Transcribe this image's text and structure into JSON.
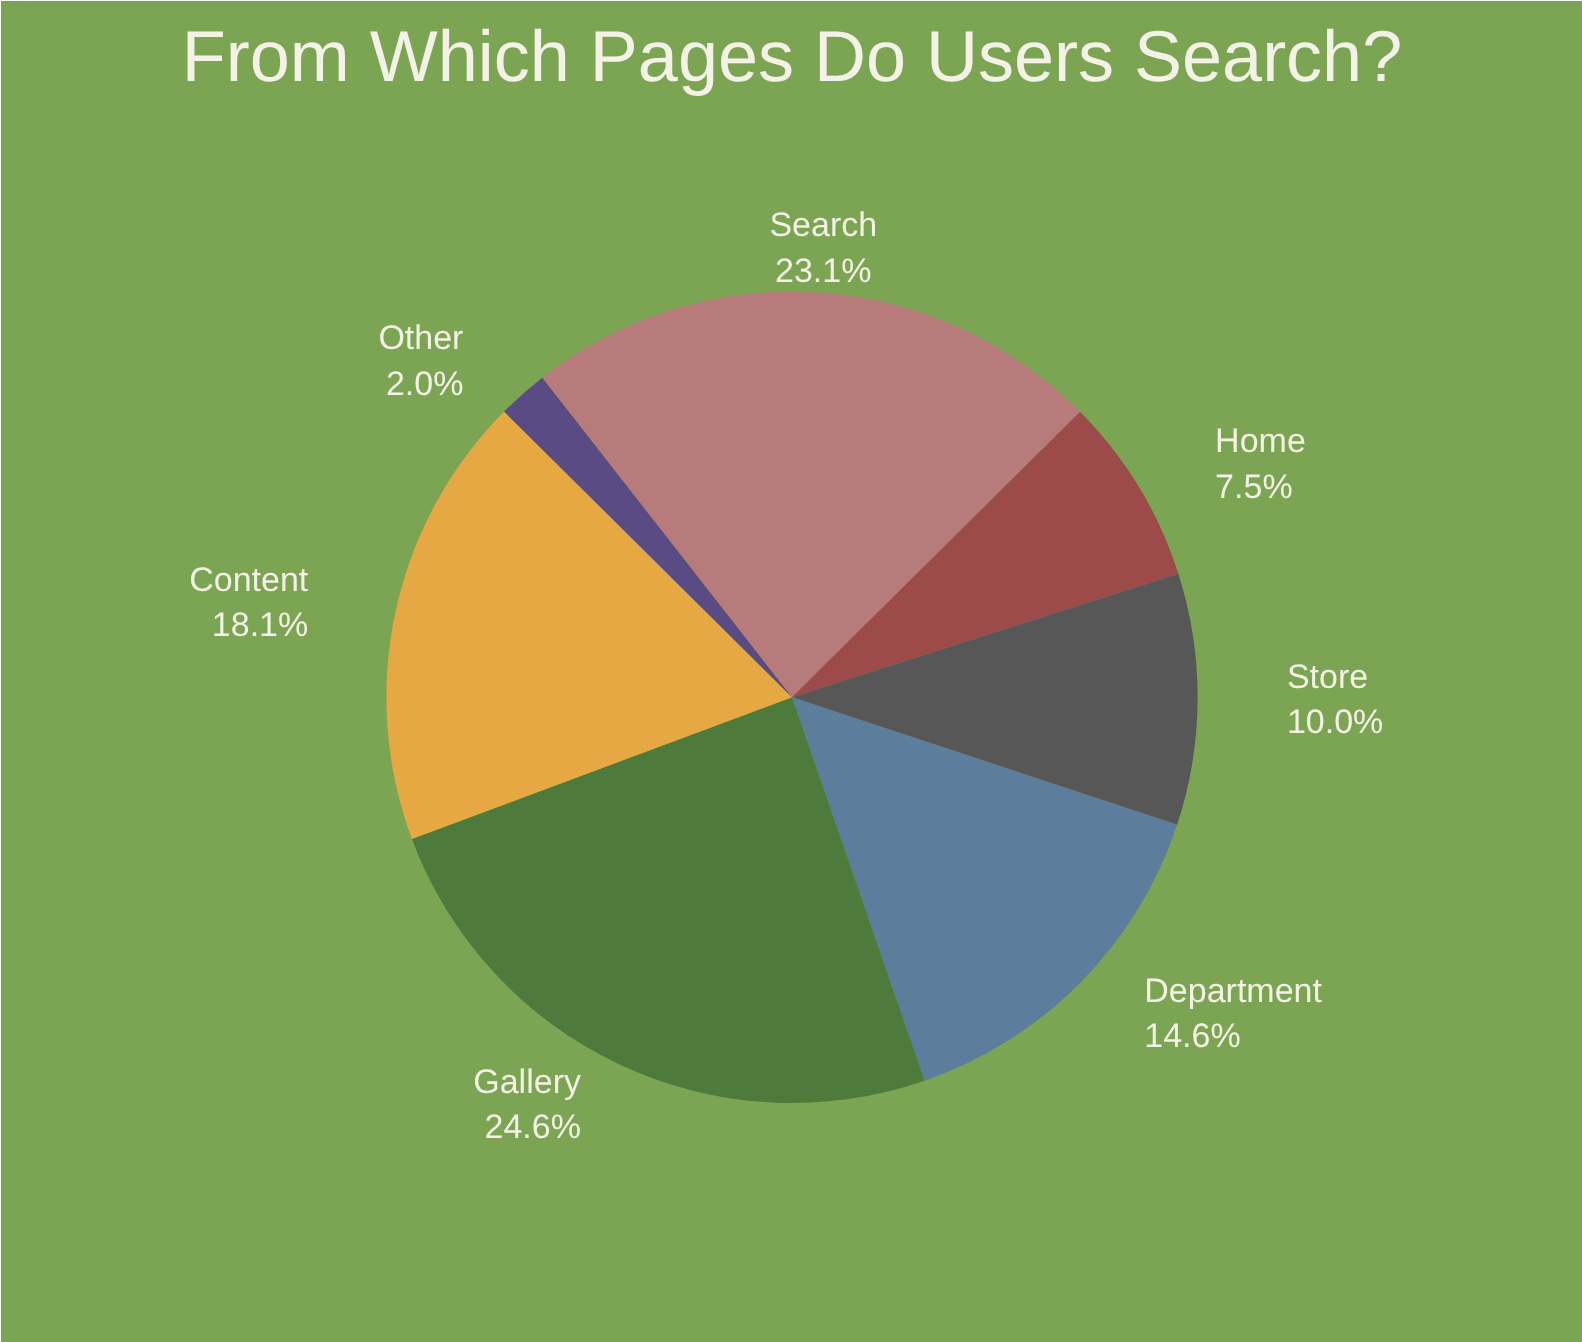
{
  "chart_data": {
    "type": "pie",
    "title": "From Which Pages Do Users Search?",
    "categories": [
      "Search",
      "Home",
      "Store",
      "Department",
      "Gallery",
      "Content",
      "Other"
    ],
    "values": [
      23.1,
      7.5,
      10.0,
      14.6,
      24.6,
      18.1,
      2.0
    ],
    "value_labels": [
      "23.1%",
      "7.5%",
      "10.0%",
      "14.6%",
      "24.6%",
      "18.1%",
      "2.0%"
    ],
    "colors": [
      "#b87b7b",
      "#9c4a4a",
      "#575757",
      "#5d7d9c",
      "#4e7a3c",
      "#e6a843",
      "#5b4b85"
    ]
  }
}
